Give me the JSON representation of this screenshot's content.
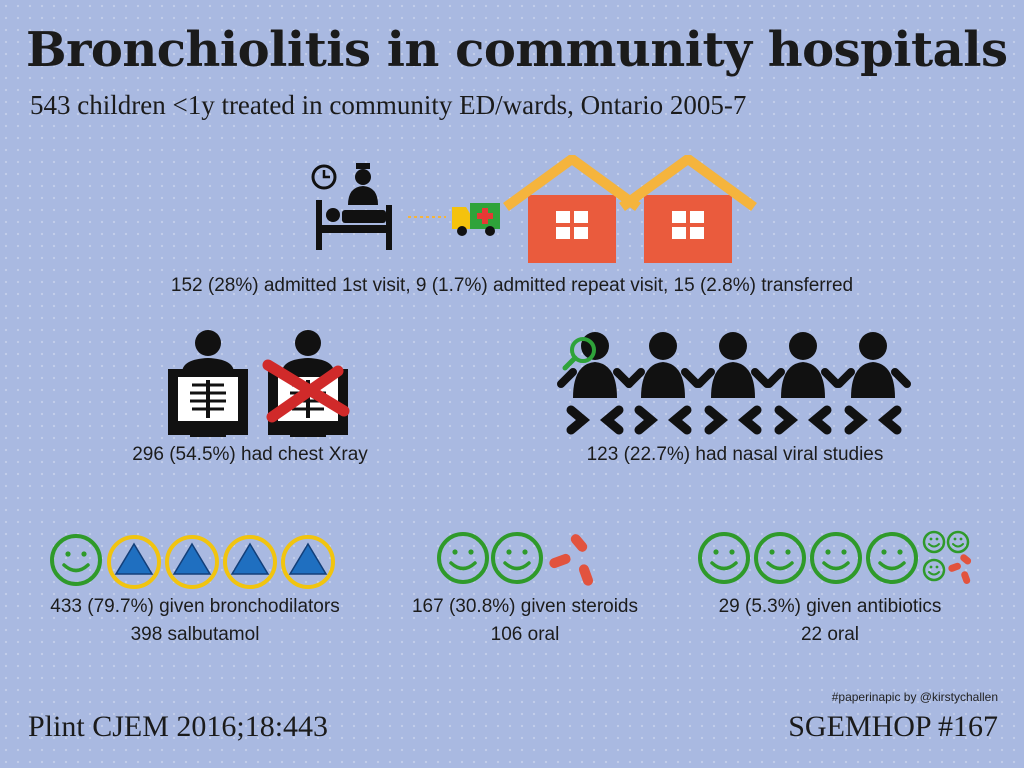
{
  "header": {
    "title": "Bronchiolitis in community hospitals",
    "subtitle": "543 children <1y treated in community ED/wards, Ontario 2005-7"
  },
  "admission": {
    "caption": "152 (28%) admitted 1st visit, 9 (1.7%) admitted repeat visit, 15 (2.8%) transferred"
  },
  "xray": {
    "caption": "296 (54.5%) had chest Xray"
  },
  "viral": {
    "caption": "123 (22.7%) had nasal viral studies"
  },
  "bronchodilators": {
    "line1": "433 (79.7%) given bronchodilators",
    "line2": "398 salbutamol"
  },
  "steroids": {
    "line1": "167 (30.8%) given steroids",
    "line2": "106 oral"
  },
  "antibiotics": {
    "line1": "29 (5.3%) given antibiotics",
    "line2": "22 oral"
  },
  "footer": {
    "citation": "Plint CJEM 2016;18:443",
    "series": "SGEMHOP #167",
    "credit": "#paperinapic by @kirstychallen"
  },
  "colors": {
    "background": "#a9b9e1",
    "house": "#ea5b3d",
    "roof": "#f5b43d",
    "smiley": "#2f9a2a",
    "inhaler_ring": "#f1c40f",
    "inhaler_triangle": "#1f6fc0",
    "pill": "#e2533e",
    "cross": "#d02a2a"
  }
}
